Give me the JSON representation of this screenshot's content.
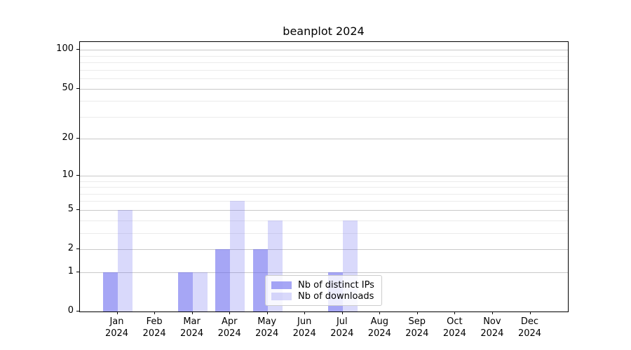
{
  "title": "beanplot 2024",
  "chart_data": {
    "type": "bar",
    "title": "beanplot 2024",
    "categories": [
      "Jan",
      "Feb",
      "Mar",
      "Apr",
      "May",
      "Jun",
      "Jul",
      "Aug",
      "Sep",
      "Oct",
      "Nov",
      "Dec"
    ],
    "year_label": "2024",
    "series": [
      {
        "name": "Nb of distinct IPs",
        "color": "rgba(102,102,238,0.58)",
        "values": [
          1,
          0,
          1,
          2,
          2,
          0,
          1,
          0,
          0,
          0,
          0,
          0
        ]
      },
      {
        "name": "Nb of downloads",
        "color": "rgba(102,102,238,0.25)",
        "values": [
          5,
          0,
          1,
          6,
          4,
          0,
          4,
          0,
          0,
          0,
          0,
          0
        ]
      }
    ],
    "yscale": "log1p",
    "ylim": [
      0,
      115
    ],
    "y_major_ticks": [
      0,
      1,
      2,
      5,
      10,
      20,
      50,
      100
    ],
    "y_minor_ticks": [
      3,
      4,
      6,
      7,
      8,
      9,
      30,
      40,
      60,
      70,
      80,
      90
    ],
    "grid": true,
    "legend_position": "lower center",
    "colors": {
      "grid_major": "#c9c9c9",
      "grid_minor": "#ebebeb",
      "axis": "#000000",
      "legend_border": "#cccccc"
    }
  }
}
